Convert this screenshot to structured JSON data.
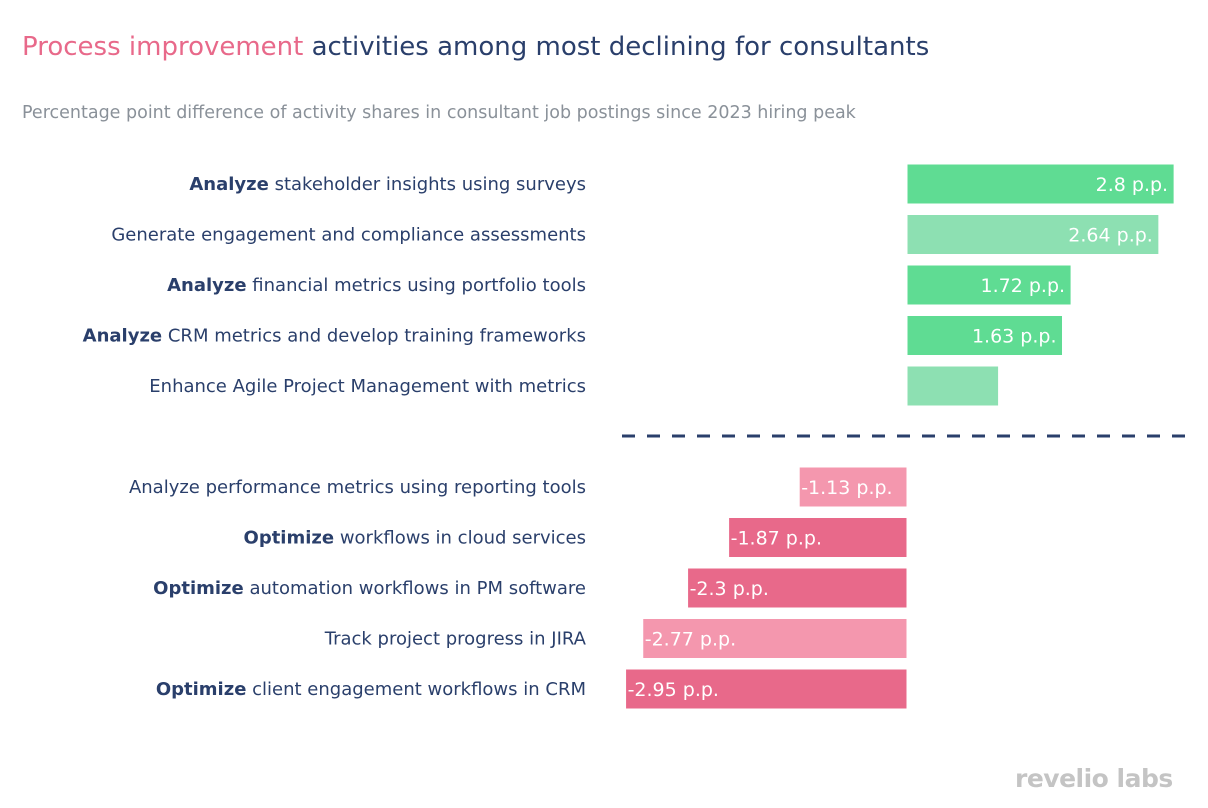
{
  "chart_data": {
    "type": "bar",
    "orientation": "horizontal",
    "title": {
      "highlight": "Process improvement",
      "rest": " activities among most declining for consultants"
    },
    "subtitle": "Percentage point difference of activity shares in consultant job postings since 2023 hiring peak",
    "unit_suffix": " p.p.",
    "grid": false,
    "groups": [
      {
        "name": "increasing",
        "items": [
          {
            "bold": "Analyze",
            "rest": " stakeholder insights using surveys",
            "value": 2.8,
            "label": "2.8 p.p.",
            "color": "#5fdc93"
          },
          {
            "bold": "",
            "rest": "Generate engagement and compliance assessments",
            "value": 2.64,
            "label": "2.64 p.p.",
            "color": "#8de0b2"
          },
          {
            "bold": "Analyze",
            "rest": " financial metrics using portfolio tools",
            "value": 1.72,
            "label": "1.72 p.p.",
            "color": "#5fdc93"
          },
          {
            "bold": "Analyze",
            "rest": " CRM metrics and develop training frameworks",
            "value": 1.63,
            "label": "1.63 p.p.",
            "color": "#5fdc93"
          },
          {
            "bold": "",
            "rest": "Enhance Agile Project Management with metrics",
            "value": 0.96,
            "label": "",
            "color": "#8de0b2"
          }
        ]
      },
      {
        "name": "declining",
        "items": [
          {
            "bold": "",
            "rest": "Analyze performance metrics using reporting tools",
            "value": -1.13,
            "label": "-1.13 p.p.",
            "color": "#f497ae"
          },
          {
            "bold": "Optimize",
            "rest": " workflows in cloud services",
            "value": -1.87,
            "label": "-1.87 p.p.",
            "color": "#e8698a"
          },
          {
            "bold": "Optimize",
            "rest": " automation workflows in PM software",
            "value": -2.3,
            "label": "-2.3 p.p.",
            "color": "#e8698a"
          },
          {
            "bold": "",
            "rest": "Track project progress in JIRA",
            "value": -2.77,
            "label": "-2.77 p.p.",
            "color": "#f497ae"
          },
          {
            "bold": "Optimize",
            "rest": " client engagement workflows in CRM",
            "value": -2.95,
            "label": "-2.95 p.p.",
            "color": "#e8698a"
          }
        ]
      }
    ],
    "separator": "dashed"
  },
  "branding": {
    "logo": "revelio labs"
  },
  "colors": {
    "text": "#2a3f6b",
    "highlight": "#e8698a",
    "subtitle": "#8a9199"
  }
}
